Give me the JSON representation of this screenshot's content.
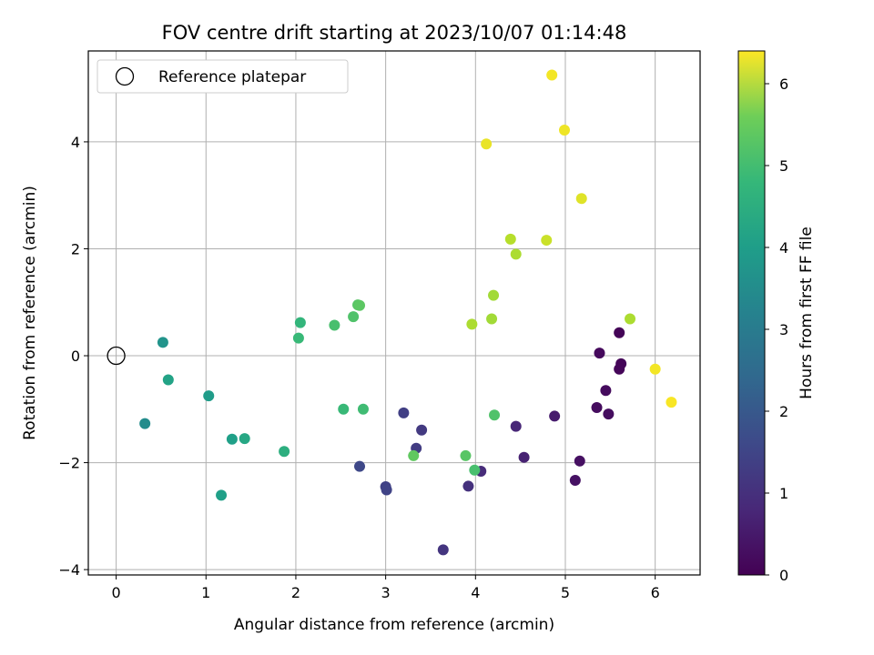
{
  "chart_data": {
    "type": "scatter",
    "title": "FOV centre drift starting at 2023/10/07 01:14:48",
    "xlabel": "Angular distance from reference (arcmin)",
    "ylabel": "Rotation from reference (arcmin)",
    "xlim": [
      -0.31,
      6.5
    ],
    "ylim": [
      -4.1,
      5.7
    ],
    "xticks": [
      0,
      1,
      2,
      3,
      4,
      5,
      6
    ],
    "yticks": [
      -4,
      -2,
      0,
      2,
      4
    ],
    "grid": true,
    "legend": {
      "placement": "top-left",
      "entries": [
        "Reference platepar"
      ]
    },
    "reference_point": {
      "x": 0,
      "y": 0,
      "label": "Reference platepar"
    },
    "colorbar": {
      "label": "Hours from first FF file",
      "colormap": "viridis",
      "range": [
        0,
        6.4
      ],
      "ticks": [
        0,
        1,
        2,
        3,
        4,
        5,
        6
      ]
    },
    "points": [
      {
        "x": 5.6,
        "y": 0.43,
        "c": 0.05
      },
      {
        "x": 5.62,
        "y": -0.15,
        "c": 0.08
      },
      {
        "x": 5.6,
        "y": -0.25,
        "c": 0.1
      },
      {
        "x": 5.38,
        "y": 0.05,
        "c": 0.15
      },
      {
        "x": 5.45,
        "y": -0.65,
        "c": 0.18
      },
      {
        "x": 5.35,
        "y": -0.97,
        "c": 0.2
      },
      {
        "x": 5.48,
        "y": -1.09,
        "c": 0.22
      },
      {
        "x": 5.16,
        "y": -1.97,
        "c": 0.28
      },
      {
        "x": 5.11,
        "y": -2.33,
        "c": 0.3
      },
      {
        "x": 4.88,
        "y": -1.13,
        "c": 0.5
      },
      {
        "x": 4.54,
        "y": -1.9,
        "c": 0.6
      },
      {
        "x": 4.45,
        "y": -1.32,
        "c": 0.7
      },
      {
        "x": 4.06,
        "y": -2.16,
        "c": 0.8
      },
      {
        "x": 3.92,
        "y": -2.44,
        "c": 0.9
      },
      {
        "x": 3.64,
        "y": -3.63,
        "c": 1.0
      },
      {
        "x": 3.4,
        "y": -1.39,
        "c": 1.1
      },
      {
        "x": 3.34,
        "y": -1.73,
        "c": 1.15
      },
      {
        "x": 3.2,
        "y": -1.07,
        "c": 1.2
      },
      {
        "x": 3.0,
        "y": -2.45,
        "c": 1.25
      },
      {
        "x": 3.01,
        "y": -2.51,
        "c": 1.3
      },
      {
        "x": 2.71,
        "y": -2.07,
        "c": 1.4
      },
      {
        "x": 1.17,
        "y": -2.61,
        "c": 3.6
      },
      {
        "x": 1.29,
        "y": -1.56,
        "c": 3.6
      },
      {
        "x": 0.32,
        "y": -1.27,
        "c": 3.1
      },
      {
        "x": 0.52,
        "y": 0.25,
        "c": 3.3
      },
      {
        "x": 1.03,
        "y": -0.75,
        "c": 3.5
      },
      {
        "x": 0.58,
        "y": -0.45,
        "c": 3.7
      },
      {
        "x": 1.43,
        "y": -1.55,
        "c": 3.8
      },
      {
        "x": 1.87,
        "y": -1.79,
        "c": 4.0
      },
      {
        "x": 2.05,
        "y": 0.62,
        "c": 4.2
      },
      {
        "x": 2.03,
        "y": 0.33,
        "c": 4.3
      },
      {
        "x": 2.53,
        "y": -1.0,
        "c": 4.3
      },
      {
        "x": 2.75,
        "y": -1.0,
        "c": 4.4
      },
      {
        "x": 2.43,
        "y": 0.57,
        "c": 4.5
      },
      {
        "x": 2.64,
        "y": 0.73,
        "c": 4.6
      },
      {
        "x": 2.69,
        "y": 0.95,
        "c": 4.7
      },
      {
        "x": 2.71,
        "y": 0.94,
        "c": 4.75
      },
      {
        "x": 3.31,
        "y": -1.87,
        "c": 4.8
      },
      {
        "x": 3.89,
        "y": -1.87,
        "c": 4.7
      },
      {
        "x": 3.99,
        "y": -2.14,
        "c": 4.5
      },
      {
        "x": 4.21,
        "y": -1.11,
        "c": 4.6
      },
      {
        "x": 3.96,
        "y": 0.59,
        "c": 5.6
      },
      {
        "x": 4.18,
        "y": 0.69,
        "c": 5.5
      },
      {
        "x": 4.2,
        "y": 1.13,
        "c": 5.5
      },
      {
        "x": 4.45,
        "y": 1.9,
        "c": 5.6
      },
      {
        "x": 4.39,
        "y": 2.18,
        "c": 5.7
      },
      {
        "x": 4.79,
        "y": 2.16,
        "c": 5.9
      },
      {
        "x": 5.72,
        "y": 0.69,
        "c": 5.6
      },
      {
        "x": 5.18,
        "y": 2.94,
        "c": 6.1
      },
      {
        "x": 4.12,
        "y": 3.96,
        "c": 6.2
      },
      {
        "x": 4.99,
        "y": 4.22,
        "c": 6.25
      },
      {
        "x": 4.85,
        "y": 5.25,
        "c": 6.3
      },
      {
        "x": 6.0,
        "y": -0.25,
        "c": 6.3
      },
      {
        "x": 6.18,
        "y": -0.87,
        "c": 6.35
      }
    ]
  }
}
